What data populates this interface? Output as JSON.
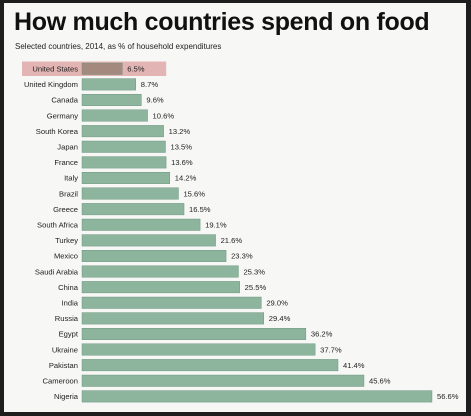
{
  "chart_data": {
    "type": "bar",
    "orientation": "horizontal",
    "title": "How much countries spend on food",
    "subtitle": "Selected countries, 2014, as % of household expenditures",
    "xlabel": "",
    "ylabel": "",
    "xlim": [
      0,
      56.6
    ],
    "grid": false,
    "legend": "none",
    "highlight": "United States",
    "colors": {
      "bar": "#8db59e",
      "highlight_bar": "#a48a7e",
      "highlight_band": "#e3b4b4"
    },
    "categories": [
      "United States",
      "United Kingdom",
      "Canada",
      "Germany",
      "South Korea",
      "Japan",
      "France",
      "Italy",
      "Brazil",
      "Greece",
      "South Africa",
      "Turkey",
      "Mexico",
      "Saudi Arabia",
      "China",
      "India",
      "Russia",
      "Egypt",
      "Ukraine",
      "Pakistan",
      "Cameroon",
      "Nigeria"
    ],
    "values": [
      6.5,
      8.7,
      9.6,
      10.6,
      13.2,
      13.5,
      13.6,
      14.2,
      15.6,
      16.5,
      19.1,
      21.6,
      23.3,
      25.3,
      25.5,
      29.0,
      29.4,
      36.2,
      37.7,
      41.4,
      45.6,
      56.6
    ],
    "value_labels": [
      "6.5%",
      "8.7%",
      "9.6%",
      "10.6%",
      "13.2%",
      "13.5%",
      "13.6%",
      "14.2%",
      "15.6%",
      "16.5%",
      "19.1%",
      "21.6%",
      "23.3%",
      "25.3%",
      "25.5%",
      "29.0%",
      "29.4%",
      "36.2%",
      "37.7%",
      "41.4%",
      "45.6%",
      "56.6%"
    ]
  }
}
